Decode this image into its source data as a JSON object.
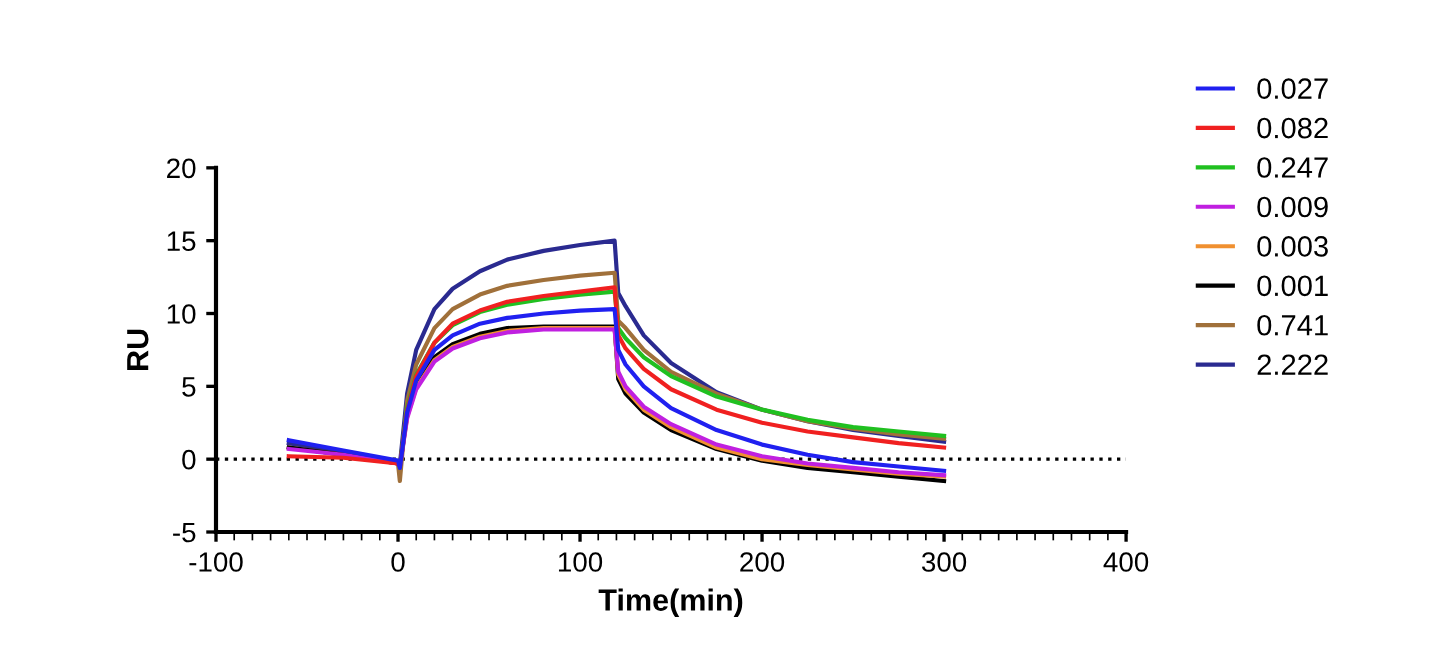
{
  "chart_data": {
    "type": "line",
    "xlabel": "Time(min)",
    "ylabel": "RU",
    "x": [
      -60,
      -30,
      0,
      1,
      5,
      10,
      20,
      30,
      45,
      60,
      80,
      100,
      119,
      121,
      125,
      135,
      150,
      175,
      200,
      225,
      250,
      275,
      300
    ],
    "series": [
      {
        "name": "0.027",
        "color": "#2020f0",
        "values": [
          1.3,
          0.6,
          -0.1,
          -0.6,
          3.2,
          5.4,
          7.5,
          8.5,
          9.3,
          9.7,
          10.0,
          10.2,
          10.3,
          7.5,
          6.5,
          5.0,
          3.5,
          2.0,
          1.0,
          0.3,
          -0.2,
          -0.5,
          -0.8
        ]
      },
      {
        "name": "0.082",
        "color": "#f02020",
        "values": [
          0.2,
          0.1,
          -0.3,
          -0.5,
          3.3,
          5.7,
          8.0,
          9.3,
          10.2,
          10.8,
          11.2,
          11.5,
          11.8,
          8.5,
          7.6,
          6.2,
          4.8,
          3.4,
          2.5,
          1.9,
          1.5,
          1.1,
          0.8
        ]
      },
      {
        "name": "0.247",
        "color": "#20c020",
        "values": [
          null,
          null,
          null,
          -0.5,
          3.5,
          5.8,
          8.0,
          9.2,
          10.1,
          10.6,
          11.0,
          11.3,
          11.5,
          9.0,
          8.3,
          7.0,
          5.7,
          4.3,
          3.4,
          2.7,
          2.2,
          1.9,
          1.6
        ]
      },
      {
        "name": "0.009",
        "color": "#c020e0",
        "values": [
          0.7,
          0.3,
          -0.3,
          -0.5,
          2.8,
          4.8,
          6.7,
          7.6,
          8.3,
          8.7,
          8.9,
          8.9,
          8.9,
          6.0,
          5.0,
          3.6,
          2.4,
          1.0,
          0.2,
          -0.3,
          -0.6,
          -0.9,
          -1.1
        ]
      },
      {
        "name": "0.003",
        "color": "#f09030",
        "values": [
          null,
          null,
          null,
          -0.5,
          2.9,
          4.9,
          6.8,
          7.7,
          8.4,
          8.8,
          9.0,
          9.0,
          9.0,
          5.8,
          4.8,
          3.4,
          2.2,
          0.8,
          0.0,
          -0.4,
          -0.7,
          -1.0,
          -1.2
        ]
      },
      {
        "name": "0.001",
        "color": "#000000",
        "values": [
          0.8,
          0.3,
          -0.3,
          -0.5,
          3.0,
          5.1,
          7.0,
          7.9,
          8.6,
          9.0,
          9.1,
          9.1,
          9.1,
          5.5,
          4.5,
          3.2,
          2.0,
          0.7,
          -0.1,
          -0.6,
          -0.9,
          -1.2,
          -1.5
        ]
      },
      {
        "name": "0.741",
        "color": "#a0703a",
        "values": [
          0.8,
          0.3,
          -0.3,
          -1.5,
          4.0,
          6.5,
          9.0,
          10.3,
          11.3,
          11.9,
          12.3,
          12.6,
          12.8,
          9.5,
          9.0,
          7.5,
          6.0,
          4.5,
          3.4,
          2.6,
          2.1,
          1.7,
          1.4
        ]
      },
      {
        "name": "2.222",
        "color": "#2a2a90",
        "values": [
          1.1,
          0.5,
          -0.2,
          -0.4,
          4.5,
          7.5,
          10.3,
          11.7,
          12.9,
          13.7,
          14.3,
          14.7,
          15.0,
          11.4,
          10.5,
          8.5,
          6.6,
          4.6,
          3.4,
          2.6,
          2.0,
          1.6,
          1.2
        ]
      }
    ],
    "xlim": [
      -100,
      400
    ],
    "xticks": [
      -100,
      0,
      100,
      200,
      300,
      400
    ],
    "ylim": [
      -5,
      20
    ],
    "yticks": [
      -5,
      0,
      5,
      10,
      15,
      20
    ],
    "ref_lines": [
      {
        "axis": "y",
        "value": 0,
        "color": "#000000",
        "line_style": "dotted"
      }
    ],
    "legend": "right",
    "grid": false,
    "marker": "none",
    "line_style": "solid"
  }
}
